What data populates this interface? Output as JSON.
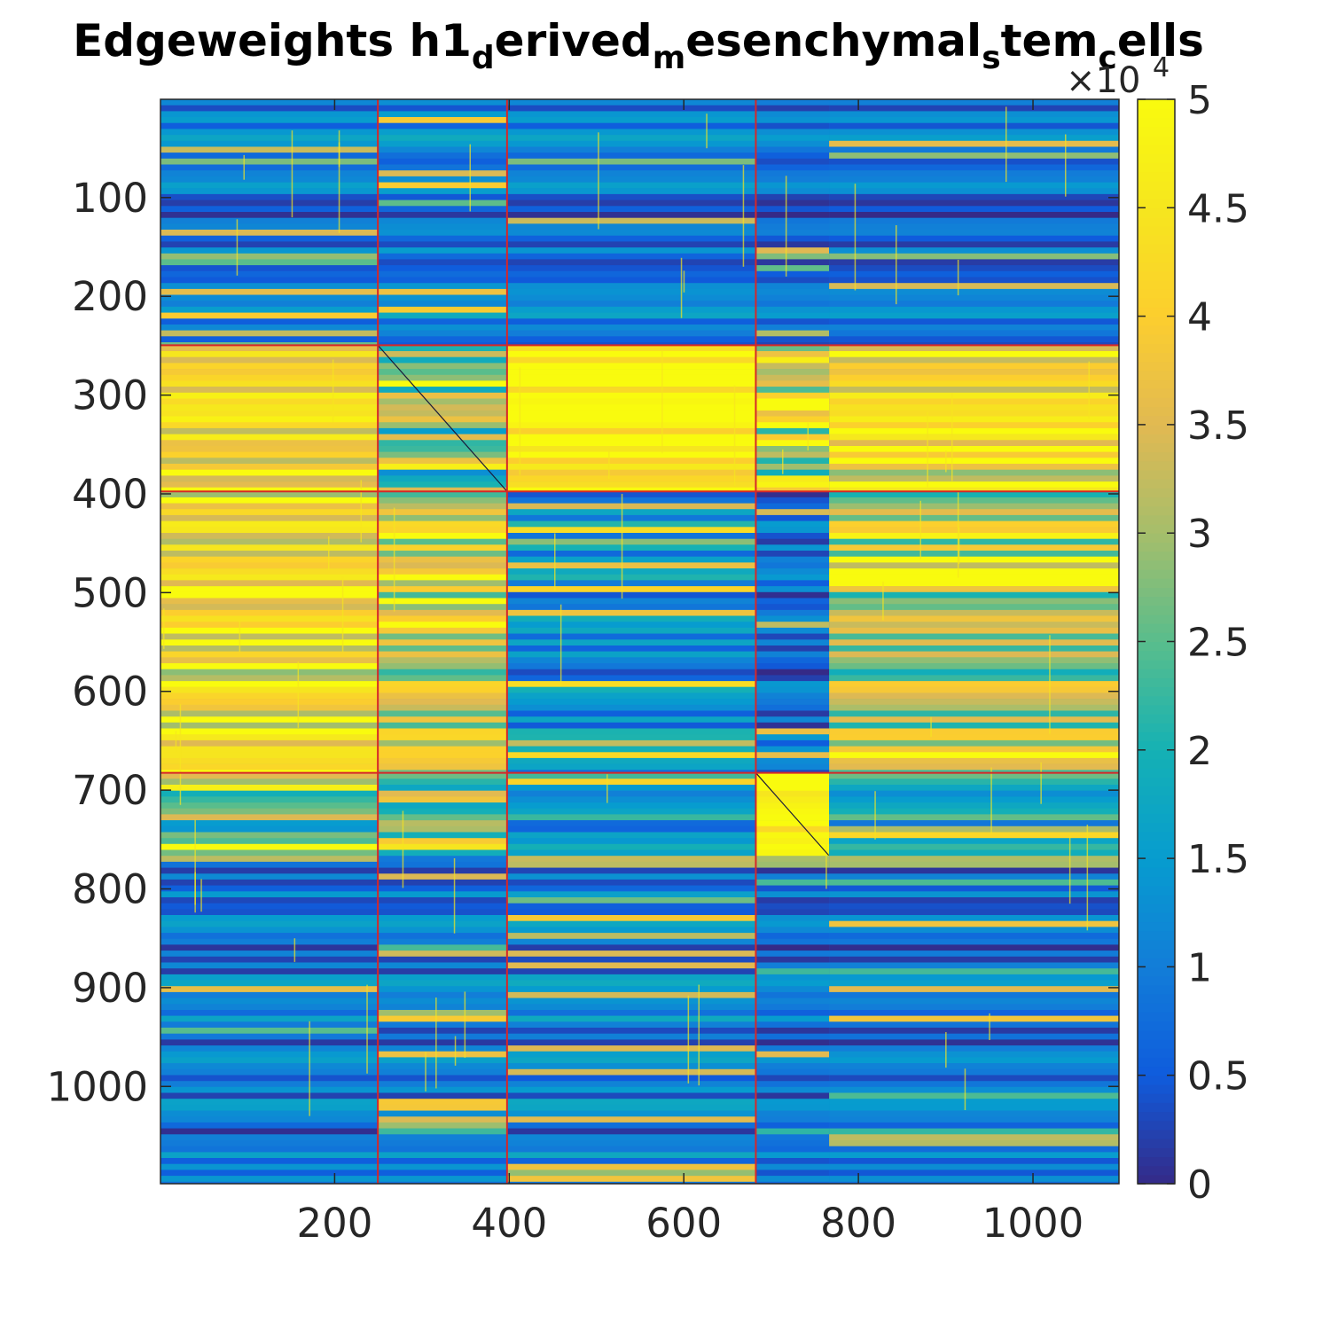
{
  "chart_data": {
    "type": "heatmap",
    "title": {
      "segments": [
        {
          "text": "Edgeweights h1",
          "sub": false
        },
        {
          "text": "d",
          "sub": true
        },
        {
          "text": "erived",
          "sub": false
        },
        {
          "text": "m",
          "sub": true
        },
        {
          "text": "esenchymal",
          "sub": false
        },
        {
          "text": "s",
          "sub": true
        },
        {
          "text": "tem",
          "sub": false
        },
        {
          "text": "c",
          "sub": true
        },
        {
          "text": "ells",
          "sub": false
        }
      ]
    },
    "xlim": [
      0.5,
      1098.5
    ],
    "ylim": [
      0.5,
      1098.5
    ],
    "y_reversed": true,
    "x_ticks": [
      200,
      400,
      600,
      800,
      1000
    ],
    "y_ticks": [
      100,
      200,
      300,
      400,
      500,
      600,
      700,
      800,
      900,
      1000
    ],
    "colorbar": {
      "colormap": "parula",
      "clim": [
        0,
        50000
      ],
      "ticks": [
        0,
        0.5,
        1,
        1.5,
        2,
        2.5,
        3,
        3.5,
        4,
        4.5,
        5
      ],
      "tick_labels": [
        "0",
        "0.5",
        "1",
        "1.5",
        "2",
        "2.5",
        "3",
        "3.5",
        "4",
        "4.5",
        "5"
      ],
      "exponent_label": "×10",
      "exponent_power": "4"
    },
    "group_boundaries": [
      249,
      397,
      682
    ],
    "boundary_color": "#d62728",
    "blocks": {
      "row_groups": [
        [
          1,
          249
        ],
        [
          250,
          397
        ],
        [
          398,
          682
        ],
        [
          683,
          766
        ],
        [
          767,
          1098
        ]
      ],
      "col_groups": [
        [
          1,
          249
        ],
        [
          250,
          397
        ],
        [
          398,
          682
        ],
        [
          683,
          766
        ],
        [
          767,
          1098
        ]
      ],
      "mean_level": [
        [
          0.18,
          0.2,
          0.18,
          0.15,
          0.16
        ],
        [
          0.78,
          0.5,
          0.92,
          0.6,
          0.75
        ],
        [
          0.75,
          0.65,
          0.25,
          0.15,
          0.6
        ],
        [
          0.5,
          0.35,
          0.3,
          0.96,
          0.35
        ],
        [
          0.18,
          0.18,
          0.2,
          0.15,
          0.16
        ]
      ]
    },
    "diagonal_lines": [
      [
        249,
        397
      ],
      [
        683,
        766
      ]
    ]
  }
}
